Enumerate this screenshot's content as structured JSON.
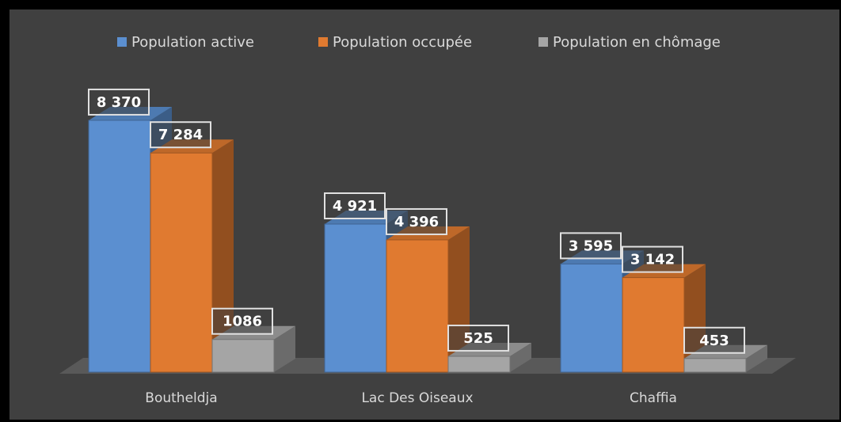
{
  "chart_data": {
    "type": "bar3d",
    "categories": [
      "Boutheldja",
      "Lac Des Oiseaux",
      "Chaffia"
    ],
    "series": [
      {
        "name": "Population active",
        "color": "#5b8fd0",
        "values": [
          8370,
          4921,
          3595
        ],
        "value_labels": [
          "8 370",
          "4 921",
          "3 595"
        ]
      },
      {
        "name": "Population occupée",
        "color": "#e07a30",
        "values": [
          7284,
          4396,
          3142
        ],
        "value_labels": [
          "7 284",
          "4 396",
          "3 142"
        ]
      },
      {
        "name": "Population en chômage",
        "color": "#a5a5a5",
        "values": [
          1086,
          525,
          453
        ]
      }
    ],
    "legend": "top"
  }
}
